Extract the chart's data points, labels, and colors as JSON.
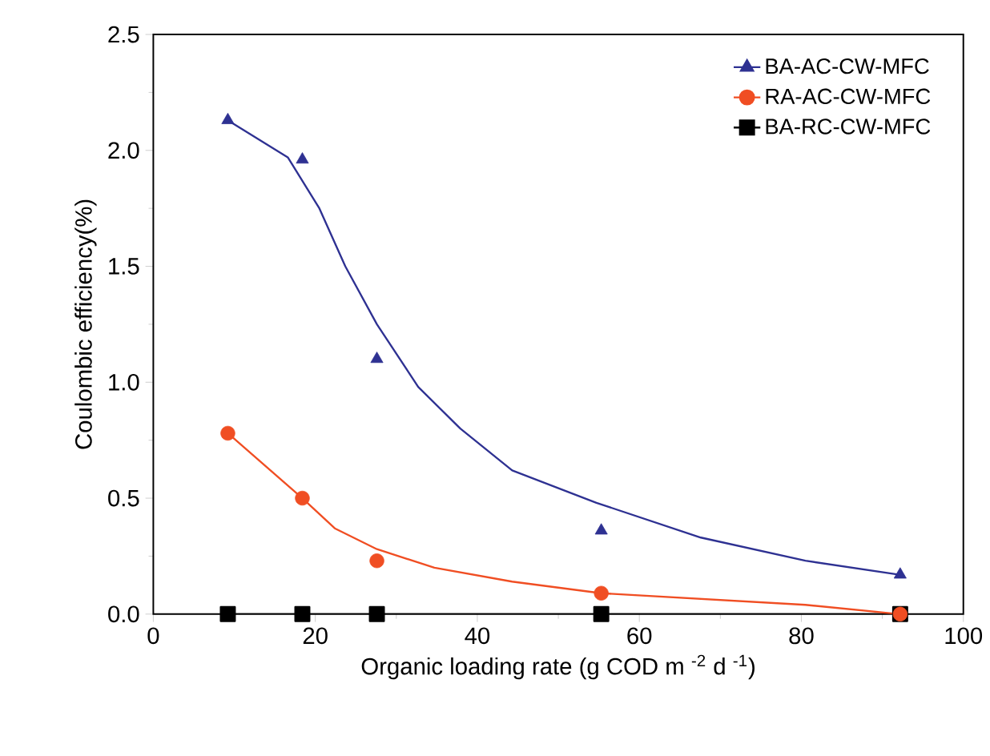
{
  "chart_data": {
    "type": "scatter",
    "xlabel": "Organic loading rate (g COD m $^{-2}$ d $^{-1}$)",
    "ylabel": "Coulombic efficiency(%)",
    "xlim": [
      0,
      100
    ],
    "ylim": [
      0,
      2.5
    ],
    "xticks": [
      0,
      20,
      40,
      60,
      80,
      100
    ],
    "yticks": [
      {
        "value": 0,
        "label": "0.0"
      },
      {
        "value": 0.5,
        "label": "0.5"
      },
      {
        "value": 1,
        "label": "1.0"
      },
      {
        "value": 1.5,
        "label": "1.5"
      },
      {
        "value": 2,
        "label": "2.0"
      },
      {
        "value": 2.5,
        "label": "2.5"
      }
    ],
    "legend": "top right",
    "grid": false,
    "series": [
      {
        "name": "BA-AC-CW-MFC",
        "marker": "triangle",
        "color": "#2e3192",
        "x": [
          9.2,
          18.4,
          27.6,
          55.3,
          92.2
        ],
        "values": [
          2.13,
          1.96,
          1.1,
          0.36,
          0.17
        ]
      },
      {
        "name": "RA-AC-CW-MFC",
        "marker": "circle",
        "color": "#f04e23",
        "x": [
          9.2,
          18.4,
          27.6,
          55.3,
          92.2
        ],
        "values": [
          0.78,
          0.5,
          0.23,
          0.09,
          0.0
        ]
      },
      {
        "name": "BA-RC-CW-MFC",
        "type": "line",
        "marker": "square",
        "color": "#000000",
        "x": [
          9.2,
          18.4,
          27.6,
          55.3,
          92.2
        ],
        "values": [
          0,
          0,
          0,
          0,
          0
        ]
      },
      {
        "type": "line",
        "marker": "none",
        "color": "#2e3192",
        "x": [
          9.2,
          16.6,
          20.5,
          23.7,
          27.6,
          32.7,
          37.9,
          44.3,
          54.7,
          67.6,
          80.5,
          92.1
        ],
        "values": [
          2.13,
          1.97,
          1.75,
          1.5,
          1.25,
          0.98,
          0.8,
          0.62,
          0.48,
          0.33,
          0.23,
          0.17
        ]
      },
      {
        "type": "line",
        "marker": "none",
        "color": "#f04e23",
        "x": [
          9.2,
          18.4,
          22.4,
          27.6,
          34.7,
          44.3,
          55.3,
          80.5,
          92.1
        ],
        "values": [
          0.78,
          0.5,
          0.37,
          0.28,
          0.2,
          0.14,
          0.09,
          0.04,
          0.0
        ]
      }
    ]
  }
}
